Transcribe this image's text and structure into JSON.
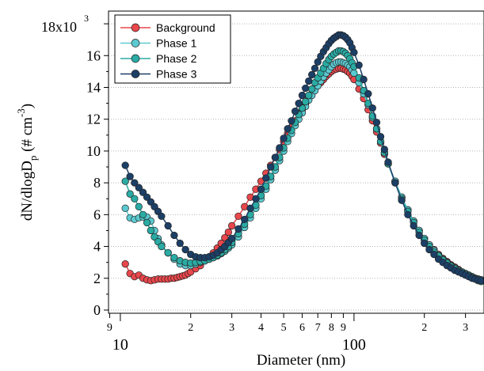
{
  "chart_data": {
    "type": "scatter",
    "xlabel": "Diameter (nm)",
    "ylabel_parts": {
      "main": "dN/dlogD",
      "sub": "p",
      "units": " (# cm",
      "exp": "-3",
      "close": ")"
    },
    "x_scale": "log",
    "xlim": [
      8.9,
      360
    ],
    "ylim": [
      -0.2,
      18.8
    ],
    "ytick_scale_label": {
      "base": "18x10",
      "exp": "3"
    },
    "yticks": [
      {
        "value": 0,
        "label": "0"
      },
      {
        "value": 2,
        "label": "2"
      },
      {
        "value": 4,
        "label": "4"
      },
      {
        "value": 6,
        "label": "6"
      },
      {
        "value": 8,
        "label": "8"
      },
      {
        "value": 10,
        "label": "10"
      },
      {
        "value": 12,
        "label": "12"
      },
      {
        "value": 14,
        "label": "14"
      },
      {
        "value": 16,
        "label": "16"
      }
    ],
    "xticks_major": [
      {
        "value": 10,
        "label": "10"
      },
      {
        "value": 100,
        "label": "100"
      }
    ],
    "xticks_minor": [
      {
        "value": 9,
        "label": "9"
      },
      {
        "value": 20,
        "label": "2"
      },
      {
        "value": 30,
        "label": "3"
      },
      {
        "value": 40,
        "label": "4"
      },
      {
        "value": 50,
        "label": "5"
      },
      {
        "value": 60,
        "label": "6"
      },
      {
        "value": 70,
        "label": "7"
      },
      {
        "value": 80,
        "label": "8"
      },
      {
        "value": 90,
        "label": "9"
      },
      {
        "value": 200,
        "label": "2"
      },
      {
        "value": 300,
        "label": "3"
      }
    ],
    "grid": "horizontal dotted",
    "legend_position": "top-left",
    "series": [
      {
        "name": "Background",
        "color": "#e8474c",
        "x": [
          10.5,
          11,
          11.5,
          12,
          12.5,
          13,
          13.5,
          14,
          14.5,
          15,
          15.5,
          16,
          16.5,
          17,
          17.5,
          18,
          18.5,
          19,
          19.5,
          20,
          21,
          22,
          23,
          24,
          25,
          26,
          27,
          28,
          29,
          30,
          32,
          34,
          36,
          38,
          40,
          42,
          44,
          46,
          48,
          50,
          52,
          54,
          56,
          58,
          60,
          62,
          64,
          66,
          68,
          70,
          72,
          74,
          76,
          78,
          80,
          82,
          84,
          86,
          88,
          90,
          92,
          94,
          96,
          98,
          100,
          105,
          110,
          115,
          120,
          125,
          130,
          135,
          140,
          150,
          160,
          170,
          180,
          190,
          200,
          210,
          220,
          230,
          240,
          250,
          260,
          270,
          280,
          290,
          300,
          310,
          320,
          330,
          340,
          350
        ],
        "y": [
          2.9,
          2.3,
          2.1,
          2.2,
          2.0,
          1.9,
          1.85,
          1.9,
          1.95,
          1.95,
          1.95,
          1.95,
          2.0,
          2.0,
          2.05,
          2.1,
          2.15,
          2.2,
          2.3,
          2.4,
          2.6,
          2.8,
          3.1,
          3.35,
          3.6,
          3.9,
          4.2,
          4.55,
          4.9,
          5.3,
          5.9,
          6.5,
          7.1,
          7.6,
          8.1,
          8.6,
          9.1,
          9.6,
          10.1,
          10.6,
          11.1,
          11.5,
          11.9,
          12.3,
          12.6,
          13.0,
          13.3,
          13.6,
          13.9,
          14.1,
          14.3,
          14.5,
          14.7,
          14.85,
          15.0,
          15.1,
          15.15,
          15.2,
          15.2,
          15.15,
          15.1,
          15.0,
          14.9,
          14.7,
          14.5,
          13.9,
          13.3,
          12.6,
          11.9,
          11.2,
          10.5,
          9.8,
          9.2,
          8.1,
          7.1,
          6.3,
          5.6,
          5.0,
          4.5,
          4.1,
          3.8,
          3.5,
          3.25,
          3.05,
          2.85,
          2.7,
          2.55,
          2.4,
          2.3,
          2.2,
          2.1,
          2.0,
          1.95,
          1.9
        ]
      },
      {
        "name": "Phase 1",
        "color": "#5cc9d0",
        "x": [
          10.5,
          11,
          11.5,
          12,
          12.5,
          13,
          13.5,
          14,
          14.5,
          15,
          16,
          17,
          18,
          19,
          20,
          21,
          22,
          23,
          24,
          25,
          26,
          27,
          28,
          29,
          30,
          32,
          34,
          36,
          38,
          40,
          42,
          44,
          46,
          48,
          50,
          52,
          54,
          56,
          58,
          60,
          62,
          64,
          66,
          68,
          70,
          72,
          74,
          76,
          78,
          80,
          82,
          84,
          86,
          88,
          90,
          92,
          94,
          96,
          98,
          100,
          105,
          110,
          115,
          120,
          125,
          130,
          135,
          140,
          150,
          160,
          170,
          180,
          190,
          200,
          210,
          220,
          230,
          240,
          250,
          260,
          270,
          280,
          290,
          300,
          310,
          320,
          330,
          340,
          350
        ],
        "y": [
          6.4,
          5.8,
          5.7,
          5.8,
          5.85,
          5.85,
          5.6,
          5.0,
          4.5,
          4.1,
          3.6,
          3.2,
          2.9,
          2.8,
          2.8,
          2.9,
          3.0,
          3.1,
          3.2,
          3.3,
          3.4,
          3.55,
          3.7,
          3.9,
          4.1,
          4.6,
          5.2,
          5.8,
          6.4,
          7.0,
          7.6,
          8.2,
          8.8,
          9.4,
          10.0,
          10.6,
          11.1,
          11.6,
          12.0,
          12.4,
          12.8,
          13.2,
          13.5,
          13.8,
          14.1,
          14.4,
          14.65,
          14.9,
          15.1,
          15.3,
          15.45,
          15.55,
          15.6,
          15.6,
          15.55,
          15.5,
          15.4,
          15.3,
          15.1,
          14.9,
          14.3,
          13.6,
          12.9,
          12.1,
          11.4,
          10.6,
          9.9,
          9.2,
          8.1,
          7.1,
          6.3,
          5.6,
          5.0,
          4.5,
          4.1,
          3.75,
          3.45,
          3.2,
          3.0,
          2.8,
          2.65,
          2.5,
          2.4,
          2.3,
          2.2,
          2.1,
          2.0,
          1.95,
          1.9
        ]
      },
      {
        "name": "Phase 2",
        "color": "#2aaba4",
        "x": [
          10.5,
          11,
          11.5,
          12,
          12.5,
          13,
          13.5,
          14,
          14.5,
          15,
          16,
          17,
          18,
          19,
          20,
          21,
          22,
          23,
          24,
          25,
          26,
          27,
          28,
          29,
          30,
          32,
          34,
          36,
          38,
          40,
          42,
          44,
          46,
          48,
          50,
          52,
          54,
          56,
          58,
          60,
          62,
          64,
          66,
          68,
          70,
          72,
          74,
          76,
          78,
          80,
          82,
          84,
          86,
          88,
          90,
          92,
          94,
          96,
          98,
          100,
          105,
          110,
          115,
          120,
          125,
          130,
          135,
          140,
          150,
          160,
          170,
          180,
          190,
          200,
          210,
          220,
          230,
          240,
          250,
          260,
          270,
          280,
          290,
          300,
          310,
          320,
          330,
          340,
          350
        ],
        "y": [
          8.1,
          7.3,
          7.0,
          6.5,
          6.0,
          5.5,
          5.0,
          4.6,
          4.3,
          4.0,
          3.6,
          3.3,
          3.1,
          3.0,
          2.95,
          3.0,
          3.05,
          3.1,
          3.2,
          3.3,
          3.45,
          3.6,
          3.8,
          4.0,
          4.25,
          4.8,
          5.4,
          6.0,
          6.6,
          7.2,
          7.8,
          8.4,
          9.0,
          9.6,
          10.2,
          10.8,
          11.3,
          11.8,
          12.3,
          12.7,
          13.1,
          13.5,
          13.9,
          14.3,
          14.6,
          14.9,
          15.2,
          15.5,
          15.75,
          15.95,
          16.1,
          16.2,
          16.3,
          16.3,
          16.25,
          16.15,
          16.0,
          15.8,
          15.55,
          15.3,
          14.6,
          13.8,
          13.0,
          12.2,
          11.4,
          10.6,
          9.9,
          9.2,
          8.0,
          7.0,
          6.2,
          5.5,
          4.9,
          4.4,
          4.0,
          3.65,
          3.4,
          3.15,
          2.95,
          2.75,
          2.6,
          2.45,
          2.35,
          2.25,
          2.15,
          2.05,
          1.95,
          1.85,
          1.8
        ]
      },
      {
        "name": "Phase 3",
        "color": "#1c3f66",
        "x": [
          10.5,
          11,
          11.5,
          12,
          12.5,
          13,
          13.5,
          14,
          14.5,
          15,
          16,
          17,
          18,
          19,
          20,
          21,
          22,
          23,
          24,
          25,
          26,
          27,
          28,
          29,
          30,
          32,
          34,
          36,
          38,
          40,
          42,
          44,
          46,
          48,
          50,
          52,
          54,
          56,
          58,
          60,
          62,
          64,
          66,
          68,
          70,
          72,
          74,
          76,
          78,
          80,
          82,
          84,
          86,
          88,
          90,
          92,
          94,
          96,
          98,
          100,
          105,
          110,
          115,
          120,
          125,
          130,
          135,
          140,
          150,
          160,
          170,
          180,
          190,
          200,
          210,
          220,
          230,
          240,
          250,
          260,
          270,
          280,
          290,
          300,
          310,
          320,
          330,
          340,
          350
        ],
        "y": [
          9.1,
          8.4,
          8.0,
          7.7,
          7.4,
          7.1,
          6.8,
          6.5,
          6.2,
          5.9,
          5.3,
          4.7,
          4.2,
          3.8,
          3.5,
          3.35,
          3.3,
          3.3,
          3.35,
          3.45,
          3.6,
          3.8,
          4.0,
          4.25,
          4.5,
          5.1,
          5.7,
          6.4,
          7.0,
          7.6,
          8.3,
          9.0,
          9.6,
          10.2,
          10.8,
          11.4,
          11.9,
          12.5,
          13.0,
          13.5,
          13.95,
          14.4,
          14.8,
          15.2,
          15.6,
          15.95,
          16.25,
          16.5,
          16.75,
          16.95,
          17.1,
          17.2,
          17.3,
          17.3,
          17.25,
          17.15,
          17.0,
          16.8,
          16.5,
          16.2,
          15.4,
          14.5,
          13.6,
          12.7,
          11.8,
          10.9,
          10.1,
          9.3,
          8.0,
          6.9,
          6.0,
          5.3,
          4.7,
          4.2,
          3.8,
          3.5,
          3.2,
          3.0,
          2.8,
          2.65,
          2.5,
          2.4,
          2.3,
          2.2,
          2.1,
          2.0,
          1.95,
          1.9,
          1.85
        ]
      }
    ]
  }
}
